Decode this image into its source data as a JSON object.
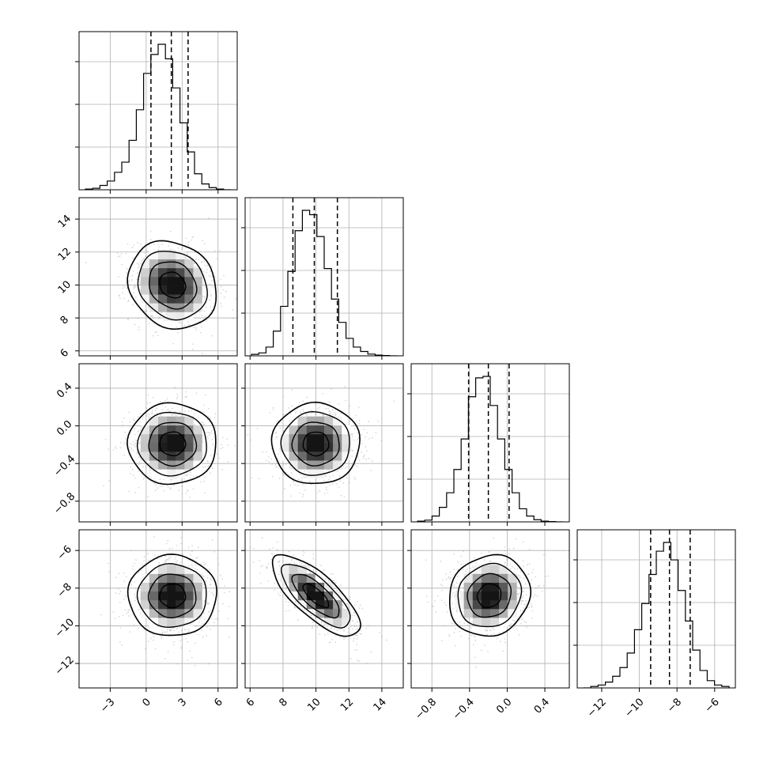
{
  "chart_data": {
    "type": "corner",
    "parameters": [
      {
        "id": "p1",
        "range": [
          -5.6,
          7.6
        ],
        "ticks": [
          -3,
          0,
          3,
          6
        ],
        "tick_labels": [
          "−3",
          "0",
          "3",
          "6"
        ],
        "mean": 2.2,
        "sd": 1.8,
        "quantiles": [
          0.4,
          2.1,
          3.5
        ]
      },
      {
        "id": "p2",
        "range": [
          5.7,
          15.3
        ],
        "ticks": [
          6,
          8,
          10,
          12,
          14
        ],
        "tick_labels": [
          "6",
          "8",
          "10",
          "12",
          "14"
        ],
        "mean": 10.0,
        "sd": 1.3,
        "quantiles": [
          8.6,
          9.9,
          11.3
        ]
      },
      {
        "id": "p3",
        "range": [
          -1.02,
          0.66
        ],
        "ticks": [
          -0.8,
          -0.4,
          0.0,
          0.4
        ],
        "tick_labels": [
          "−0.8",
          "−0.4",
          "0.0",
          "0.4"
        ],
        "mean": -0.19,
        "sd": 0.21,
        "quantiles": [
          -0.41,
          -0.2,
          0.02
        ]
      },
      {
        "id": "p4",
        "range": [
          -13.3,
          -4.9
        ],
        "ticks": [
          -12,
          -10,
          -8,
          -6
        ],
        "tick_labels": [
          "−12",
          "−10",
          "−8",
          "−6"
        ],
        "mean": -8.4,
        "sd": 1.05,
        "quantiles": [
          -9.4,
          -8.4,
          -7.3
        ]
      }
    ],
    "correlations": {
      "0-1": -0.15,
      "0-2": 0.0,
      "0-3": 0.0,
      "1-2": 0.0,
      "1-3": -0.75,
      "2-3": 0.1
    },
    "histograms": [
      [
        0.005,
        0.01,
        0.03,
        0.06,
        0.12,
        0.19,
        0.34,
        0.55,
        0.8,
        0.93,
        1.0,
        0.9,
        0.7,
        0.46,
        0.26,
        0.11,
        0.04,
        0.015,
        0.005,
        0.0
      ],
      [
        0.01,
        0.02,
        0.06,
        0.17,
        0.34,
        0.58,
        0.86,
        1.0,
        0.97,
        0.82,
        0.6,
        0.39,
        0.23,
        0.12,
        0.06,
        0.03,
        0.012,
        0.005,
        0.002,
        0.0
      ],
      [
        0.005,
        0.012,
        0.04,
        0.1,
        0.2,
        0.36,
        0.57,
        0.86,
        0.99,
        1.0,
        0.8,
        0.57,
        0.36,
        0.2,
        0.09,
        0.04,
        0.015,
        0.005,
        0.002,
        0.0
      ],
      [
        0.0,
        0.01,
        0.02,
        0.04,
        0.08,
        0.14,
        0.24,
        0.4,
        0.58,
        0.78,
        0.94,
        1.0,
        0.88,
        0.67,
        0.46,
        0.26,
        0.12,
        0.05,
        0.02,
        0.01
      ]
    ],
    "grid": true,
    "quantile_lines": "dashed"
  }
}
